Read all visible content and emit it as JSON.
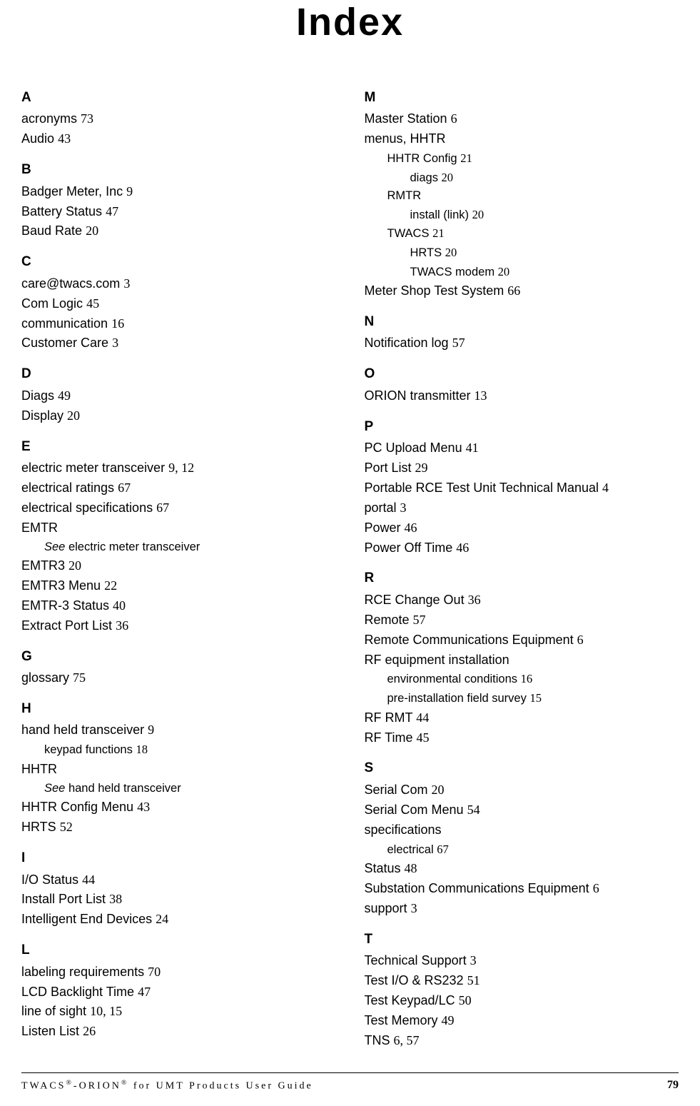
{
  "title": "Index",
  "footer": {
    "left_html": "TWACS<sup>®</sup>-ORION<sup>®</sup> for UMT Products User Guide",
    "page": "79"
  },
  "columns": [
    [
      {
        "type": "letter",
        "text": "A"
      },
      {
        "type": "entry",
        "term": "acronyms",
        "pages": "73"
      },
      {
        "type": "entry",
        "term": "Audio",
        "pages": "43"
      },
      {
        "type": "letter",
        "text": "B"
      },
      {
        "type": "entry",
        "term": "Badger Meter, Inc",
        "pages": "9"
      },
      {
        "type": "entry",
        "term": "Battery Status",
        "pages": "47"
      },
      {
        "type": "entry",
        "term": "Baud Rate",
        "pages": "20"
      },
      {
        "type": "letter",
        "text": "C"
      },
      {
        "type": "entry",
        "term": "care@twacs.com",
        "pages": "3"
      },
      {
        "type": "entry",
        "term": "Com Logic",
        "pages": "45"
      },
      {
        "type": "entry",
        "term": "communication",
        "pages": "16"
      },
      {
        "type": "entry",
        "term": "Customer Care",
        "pages": "3"
      },
      {
        "type": "letter",
        "text": "D"
      },
      {
        "type": "entry",
        "term": "Diags",
        "pages": "49"
      },
      {
        "type": "entry",
        "term": "Display",
        "pages": "20"
      },
      {
        "type": "letter",
        "text": "E"
      },
      {
        "type": "entry",
        "term": "electric meter transceiver",
        "pages": "9, 12"
      },
      {
        "type": "entry",
        "term": "electrical ratings",
        "pages": "67"
      },
      {
        "type": "entry",
        "term": "electrical specifications",
        "pages": "67"
      },
      {
        "type": "entry",
        "term": "EMTR",
        "pages": ""
      },
      {
        "type": "sub1_see",
        "see": "See",
        "rest": " electric meter transceiver"
      },
      {
        "type": "entry",
        "term": "EMTR3",
        "pages": "20"
      },
      {
        "type": "entry",
        "term": "EMTR3 Menu",
        "pages": "22"
      },
      {
        "type": "entry",
        "term": "EMTR-3 Status",
        "pages": "40"
      },
      {
        "type": "entry",
        "term": "Extract Port List",
        "pages": "36"
      },
      {
        "type": "letter",
        "text": "G"
      },
      {
        "type": "entry",
        "term": "glossary",
        "pages": "75"
      },
      {
        "type": "letter",
        "text": "H"
      },
      {
        "type": "entry",
        "term": "hand held transceiver",
        "pages": "9"
      },
      {
        "type": "sub1",
        "term": "keypad functions",
        "pages": "18"
      },
      {
        "type": "entry",
        "term": "HHTR",
        "pages": ""
      },
      {
        "type": "sub1_see",
        "see": "See",
        "rest": " hand held transceiver"
      },
      {
        "type": "entry",
        "term": "HHTR Config Menu",
        "pages": "43"
      },
      {
        "type": "entry",
        "term": "HRTS",
        "pages": "52"
      },
      {
        "type": "letter",
        "text": "I"
      },
      {
        "type": "entry",
        "term": "I/O Status",
        "pages": "44"
      },
      {
        "type": "entry",
        "term": "Install Port List",
        "pages": "38"
      },
      {
        "type": "entry",
        "term": "Intelligent End Devices",
        "pages": "24"
      },
      {
        "type": "letter",
        "text": "L"
      },
      {
        "type": "entry",
        "term": "labeling requirements",
        "pages": "70"
      },
      {
        "type": "entry",
        "term": "LCD Backlight Time",
        "pages": "47"
      },
      {
        "type": "entry",
        "term": "line of sight",
        "pages": "10, 15"
      },
      {
        "type": "entry",
        "term": "Listen List",
        "pages": "26"
      }
    ],
    [
      {
        "type": "letter",
        "text": "M"
      },
      {
        "type": "entry",
        "term": "Master Station",
        "pages": "6"
      },
      {
        "type": "entry",
        "term": "menus, HHTR",
        "pages": ""
      },
      {
        "type": "sub1",
        "term": "HHTR Config",
        "pages": "21"
      },
      {
        "type": "sub2",
        "term": "diags",
        "pages": "20"
      },
      {
        "type": "sub1",
        "term": "RMTR",
        "pages": ""
      },
      {
        "type": "sub2",
        "term": "install (link)",
        "pages": "20"
      },
      {
        "type": "sub1",
        "term": "TWACS",
        "pages": "21"
      },
      {
        "type": "sub2",
        "term": "HRTS",
        "pages": "20"
      },
      {
        "type": "sub2",
        "term": "TWACS modem",
        "pages": "20"
      },
      {
        "type": "entry",
        "term": "Meter Shop Test System",
        "pages": "66"
      },
      {
        "type": "letter",
        "text": "N"
      },
      {
        "type": "entry",
        "term": "Notification log",
        "pages": "57"
      },
      {
        "type": "letter",
        "text": "O"
      },
      {
        "type": "entry",
        "term": "ORION transmitter",
        "pages": "13"
      },
      {
        "type": "letter",
        "text": "P"
      },
      {
        "type": "entry",
        "term": "PC Upload Menu",
        "pages": "41"
      },
      {
        "type": "entry",
        "term": "Port List",
        "pages": "29"
      },
      {
        "type": "entry",
        "term": "Portable RCE Test Unit Technical Manual",
        "pages": "4"
      },
      {
        "type": "entry",
        "term": "portal",
        "pages": "3"
      },
      {
        "type": "entry",
        "term": "Power",
        "pages": "46"
      },
      {
        "type": "entry",
        "term": "Power Off Time",
        "pages": "46"
      },
      {
        "type": "letter",
        "text": "R"
      },
      {
        "type": "entry",
        "term": "RCE Change Out",
        "pages": "36"
      },
      {
        "type": "entry",
        "term": "Remote",
        "pages": "57"
      },
      {
        "type": "entry",
        "term": "Remote Communications Equipment",
        "pages": "6"
      },
      {
        "type": "entry",
        "term": "RF equipment installation",
        "pages": ""
      },
      {
        "type": "sub1",
        "term": "environmental conditions",
        "pages": "16"
      },
      {
        "type": "sub1",
        "term": "pre-installation field survey",
        "pages": "15"
      },
      {
        "type": "entry",
        "term": "RF RMT",
        "pages": "44"
      },
      {
        "type": "entry",
        "term": "RF Time",
        "pages": "45"
      },
      {
        "type": "letter",
        "text": "S"
      },
      {
        "type": "entry",
        "term": "Serial Com",
        "pages": "20"
      },
      {
        "type": "entry",
        "term": "Serial Com Menu",
        "pages": "54"
      },
      {
        "type": "entry",
        "term": "specifications",
        "pages": ""
      },
      {
        "type": "sub1",
        "term": "electrical",
        "pages": "67"
      },
      {
        "type": "entry",
        "term": "Status",
        "pages": "48"
      },
      {
        "type": "entry",
        "term": "Substation Communications Equipment",
        "pages": "6"
      },
      {
        "type": "entry",
        "term": "support",
        "pages": "3"
      },
      {
        "type": "letter",
        "text": "T"
      },
      {
        "type": "entry",
        "term": "Technical Support",
        "pages": "3"
      },
      {
        "type": "entry",
        "term": "Test I/O & RS232",
        "pages": "51"
      },
      {
        "type": "entry",
        "term": "Test Keypad/LC",
        "pages": "50"
      },
      {
        "type": "entry",
        "term": "Test Memory",
        "pages": "49"
      },
      {
        "type": "entry",
        "term": "TNS",
        "pages": "6, 57"
      }
    ]
  ]
}
